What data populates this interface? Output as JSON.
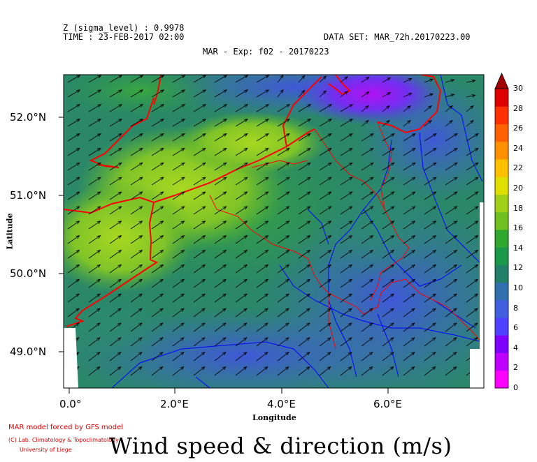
{
  "header": {
    "z_level": "Z (sigma_level) : 0.9978",
    "time": "TIME : 23-FEB-2017 02:00",
    "dataset": "DATA SET: MAR_72h.20170223.00",
    "experiment": "MAR - Exp: f02 - 20170223"
  },
  "axes": {
    "y_labels": [
      "52.0°N",
      "51.0°N",
      "50.0°N",
      "49.0°N"
    ],
    "x_labels": [
      "0.0°",
      "2.0°E",
      "4.0°E",
      "6.0°E"
    ],
    "x_title": "Longitude",
    "y_title": "Latitude"
  },
  "colorbar": {
    "labels": [
      "30",
      "28",
      "26",
      "24",
      "22",
      "20",
      "18",
      "16",
      "14",
      "12",
      "10",
      "8",
      "6",
      "4",
      "2",
      "0"
    ],
    "colors": [
      "#ff00ff",
      "#c000ff",
      "#8000ff",
      "#5040ff",
      "#4060e0",
      "#3070b0",
      "#208068",
      "#189848",
      "#30a830",
      "#70c020",
      "#a0d018",
      "#e0e000",
      "#ffc000",
      "#ff9000",
      "#ff6000",
      "#ff3000",
      "#e00000",
      "#a00000"
    ]
  },
  "credits": {
    "line1": "MAR model forced by GFS model",
    "line2": "(C) Lab. Climatology & Topoclimatology",
    "line3": "University of Liege"
  },
  "title": "Wind speed & direction (m/s)"
}
